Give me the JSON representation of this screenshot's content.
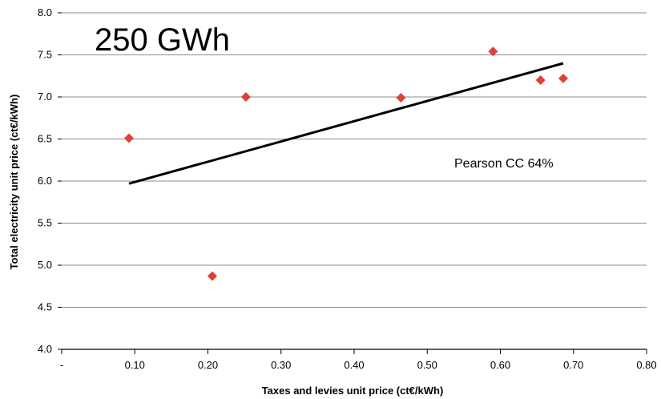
{
  "chart_data": {
    "type": "scatter",
    "title": "250 GWh",
    "xlabel": "Taxes and levies unit price (ct€/kWh)",
    "ylabel": "Total electricity unit price (ct€/kWh)",
    "xlim": [
      0,
      0.8
    ],
    "ylim": [
      4.0,
      8.0
    ],
    "x_tick_labels": [
      "-",
      "0.10",
      "0.20",
      "0.30",
      "0.40",
      "0.50",
      "0.60",
      "0.70",
      "0.80"
    ],
    "x_tick_values": [
      0,
      0.1,
      0.2,
      0.3,
      0.4,
      0.5,
      0.6,
      0.7,
      0.8
    ],
    "y_tick_labels": [
      "4.0",
      "4.5",
      "5.0",
      "5.5",
      "6.0",
      "6.5",
      "7.0",
      "7.5",
      "8.0"
    ],
    "y_tick_values": [
      4.0,
      4.5,
      5.0,
      5.5,
      6.0,
      6.5,
      7.0,
      7.5,
      8.0
    ],
    "grid": "horizontal",
    "points": [
      {
        "x": 0.092,
        "y": 6.51
      },
      {
        "x": 0.206,
        "y": 4.87
      },
      {
        "x": 0.252,
        "y": 7.0
      },
      {
        "x": 0.464,
        "y": 6.99
      },
      {
        "x": 0.59,
        "y": 7.54
      },
      {
        "x": 0.655,
        "y": 7.2
      },
      {
        "x": 0.686,
        "y": 7.22
      }
    ],
    "trendline": {
      "x": [
        0.092,
        0.686
      ],
      "y": [
        5.97,
        7.4
      ]
    },
    "annotation": "Pearson CC 64%",
    "marker_color": "#e0403a",
    "line_color": "#000000",
    "grid_color": "#8c8c8c"
  }
}
